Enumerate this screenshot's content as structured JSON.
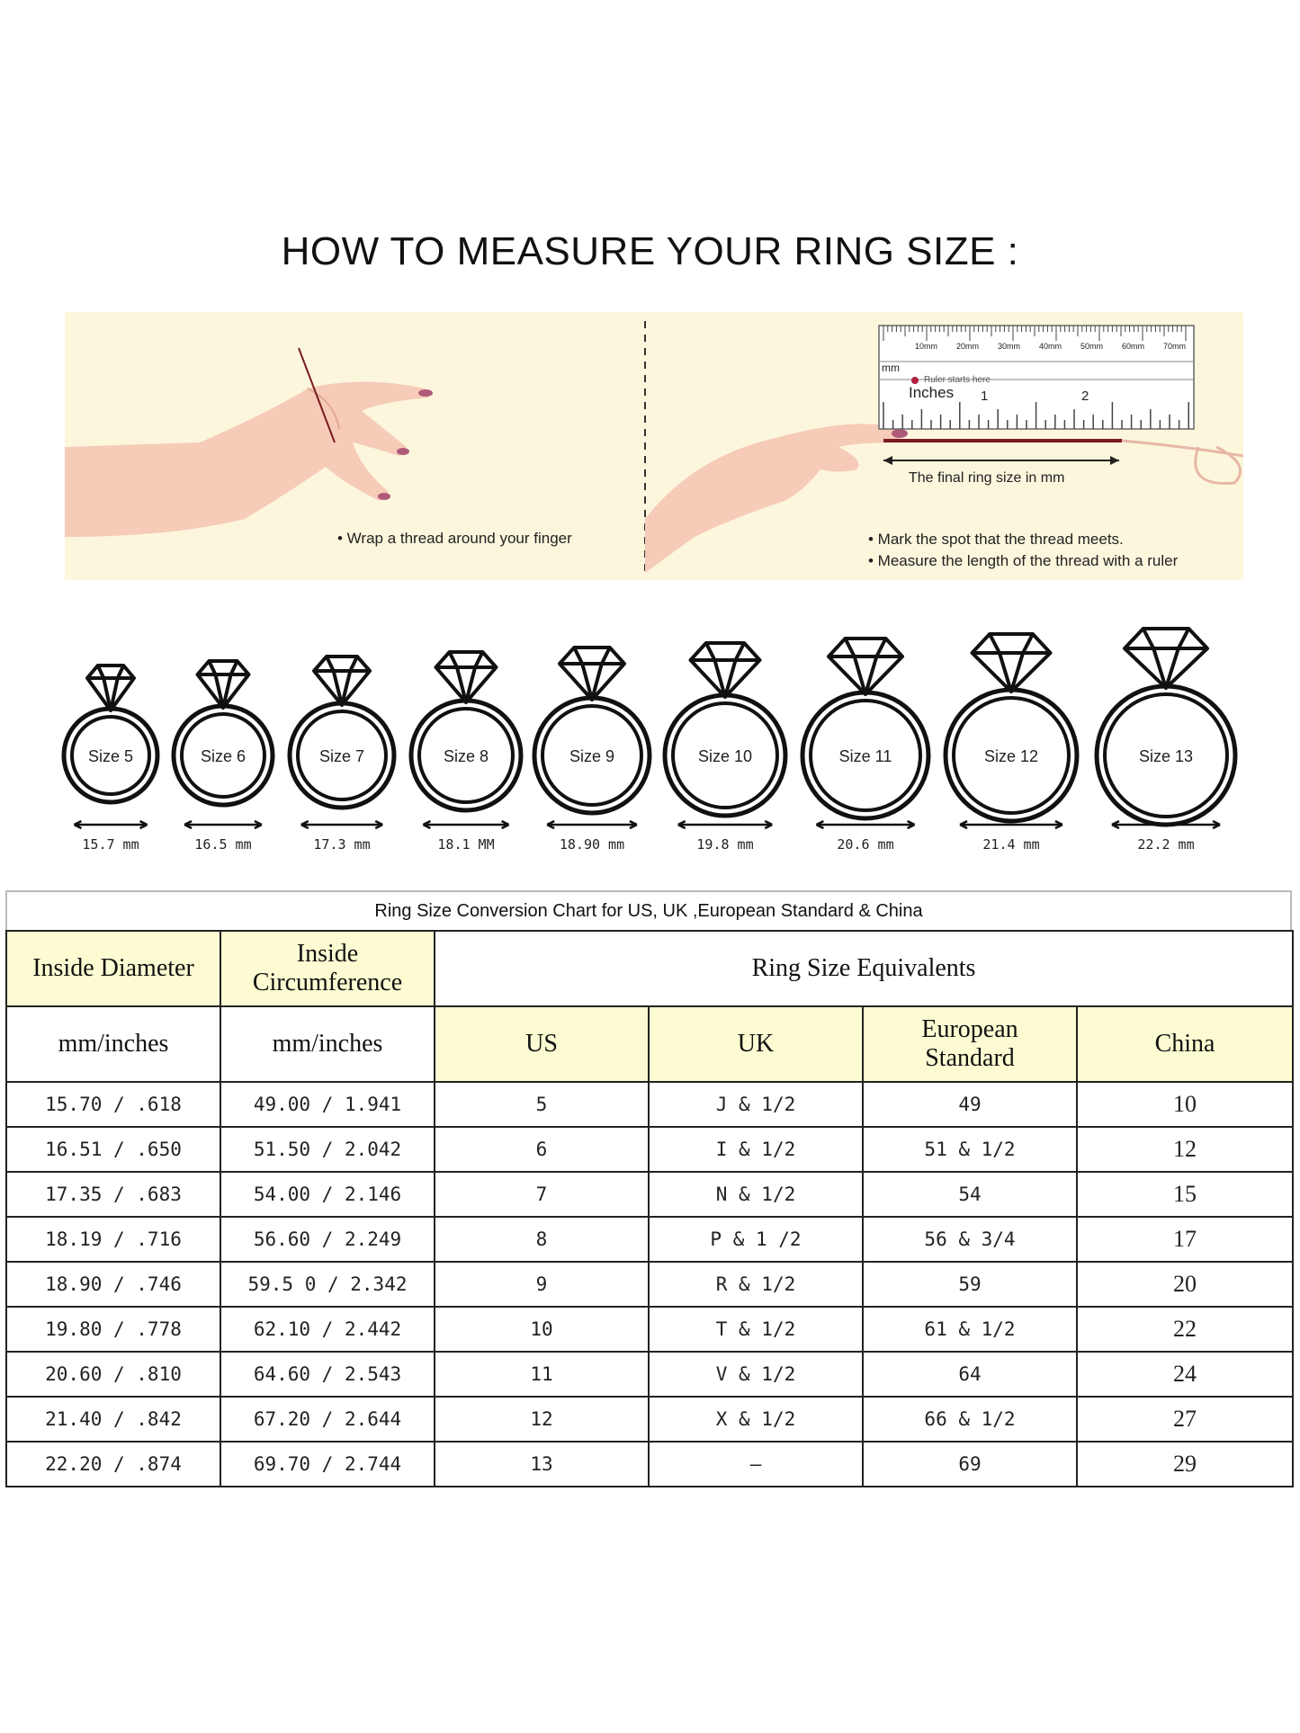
{
  "main_title": "HOW TO MEASURE YOUR RING SIZE :",
  "instructions": {
    "left_bullet": "• Wrap a thread around your finger",
    "right_bullets": [
      "• Mark the spot that the thread meets.",
      "• Measure the length of the thread with a ruler"
    ],
    "ruler": {
      "mm_label": "mm",
      "mm_ticks": [
        "10mm",
        "20mm",
        "30mm",
        "40mm",
        "50mm",
        "60mm",
        "70mm"
      ],
      "start_note": "Ruler starts here",
      "inches_label": "Inches",
      "inch_ticks": [
        "1",
        "2"
      ],
      "final_label": "The final ring size in mm"
    }
  },
  "rings": [
    {
      "label": "Size 5",
      "mm": "15.7 mm"
    },
    {
      "label": "Size 6",
      "mm": "16.5 mm"
    },
    {
      "label": "Size 7",
      "mm": "17.3 mm"
    },
    {
      "label": "Size 8",
      "mm": "18.1 MM"
    },
    {
      "label": "Size 9",
      "mm": "18.90 mm"
    },
    {
      "label": "Size 10",
      "mm": "19.8 mm"
    },
    {
      "label": "Size 11",
      "mm": "20.6 mm"
    },
    {
      "label": "Size 12",
      "mm": "21.4 mm"
    },
    {
      "label": "Size 13",
      "mm": "22.2 mm"
    }
  ],
  "table": {
    "caption": "Ring Size Conversion Chart for US, UK ,European Standard & China",
    "h_inside_diameter": "Inside Diameter",
    "h_inside_circ_1": "Inside",
    "h_inside_circ_2": "Circumference",
    "h_equivalents": "Ring Size Equivalents",
    "h_mm_inches_1": "mm/inches",
    "h_mm_inches_2": "mm/inches",
    "h_us": "US",
    "h_uk": "UK",
    "h_eu_1": "European",
    "h_eu_2": "Standard",
    "h_china": "China",
    "rows": [
      [
        "15.70 / .618",
        "49.00 / 1.941",
        "5",
        "J & 1/2",
        "49",
        "10"
      ],
      [
        "16.51 / .650",
        "51.50 / 2.042",
        "6",
        "I & 1/2",
        "51 & 1/2",
        "12"
      ],
      [
        "17.35 / .683",
        "54.00 / 2.146",
        "7",
        "N & 1/2",
        "54",
        "15"
      ],
      [
        "18.19 / .716",
        "56.60 / 2.249",
        "8",
        "P & 1 /2",
        "56 & 3/4",
        "17"
      ],
      [
        "18.90 / .746",
        "59.5 0 / 2.342",
        "9",
        "R & 1/2",
        "59",
        "20"
      ],
      [
        "19.80 / .778",
        "62.10 / 2.442",
        "10",
        "T & 1/2",
        "61 & 1/2",
        "22"
      ],
      [
        "20.60 / .810",
        "64.60 / 2.543",
        "11",
        "V & 1/2",
        "64",
        "24"
      ],
      [
        "21.40 / .842",
        "67.20 / 2.644",
        "12",
        "X & 1/2",
        "66 & 1/2",
        "27"
      ],
      [
        "22.20 / .874",
        "69.70 / 2.744",
        "13",
        "—",
        "69",
        "29"
      ]
    ]
  },
  "colors": {
    "panel_bg": "#fcf6dd",
    "skin": "#f6cbb8",
    "nail": "#b05a7a",
    "header_bg": "#fdfbd2",
    "thread": "#7a1a22"
  }
}
